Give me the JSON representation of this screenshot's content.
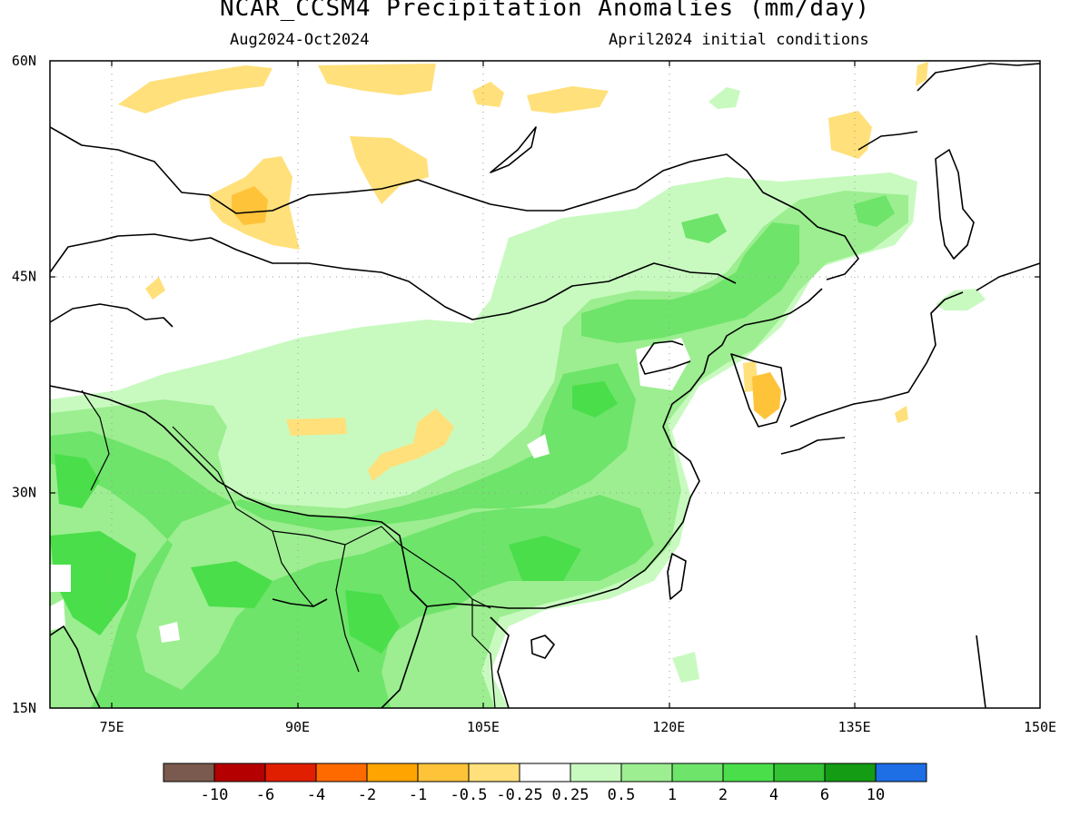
{
  "title": "NCAR_CCSM4 Precipitation Anomalies (mm/day)",
  "period": "Aug2024-Oct2024",
  "init": "April2024 initial conditions",
  "map_extent": {
    "lon_min": 70,
    "lon_max": 150,
    "lat_min": 15,
    "lat_max": 60
  },
  "lon_ticks": [
    {
      "value": 75,
      "label": "75E"
    },
    {
      "value": 90,
      "label": "90E"
    },
    {
      "value": 105,
      "label": "105E"
    },
    {
      "value": 120,
      "label": "120E"
    },
    {
      "value": 135,
      "label": "135E"
    },
    {
      "value": 150,
      "label": "150E"
    }
  ],
  "lat_ticks": [
    {
      "value": 60,
      "label": "60N"
    },
    {
      "value": 45,
      "label": "45N"
    },
    {
      "value": 30,
      "label": "30N"
    },
    {
      "value": 15,
      "label": "15N"
    }
  ],
  "colorbar": {
    "colors": [
      "#7a5a4e",
      "#b40000",
      "#e01e00",
      "#ff6a00",
      "#ffa400",
      "#ffc33a",
      "#ffe07a",
      "#ffffff",
      "#c8fac0",
      "#9cee90",
      "#6ee46a",
      "#4ade4a",
      "#32c232",
      "#149c14",
      "#1e6ee6"
    ],
    "labels": [
      "-10",
      "-6",
      "-4",
      "-2",
      "-1",
      "-0.5",
      "-0.25",
      "0.25",
      "0.5",
      "1",
      "2",
      "4",
      "6",
      "10"
    ]
  },
  "colors": {
    "pos_light": "#c8fac0",
    "pos_mid": "#9cee90",
    "pos_strong": "#6ee46a",
    "pos_stronger": "#4ade4a",
    "neg_light": "#ffe07a",
    "neg_mid": "#ffc33a",
    "neg_strong": "#ffa400"
  }
}
